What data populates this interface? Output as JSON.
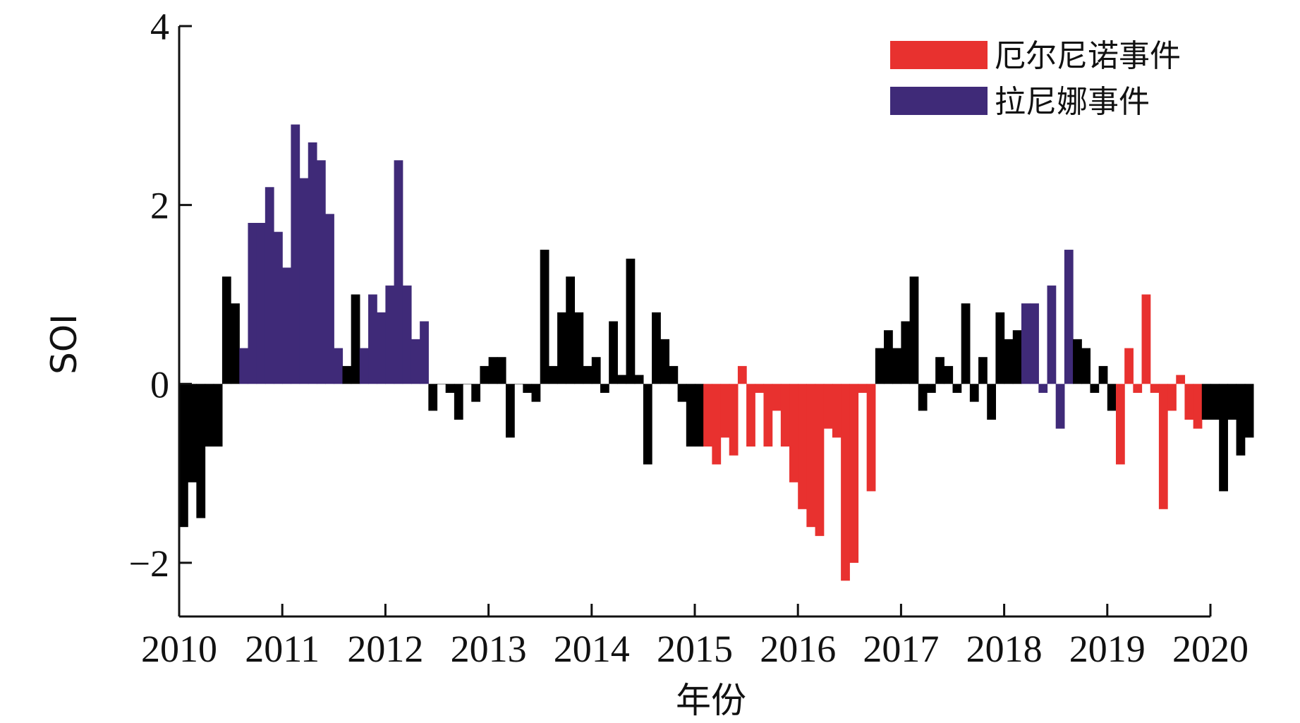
{
  "chart_data": {
    "type": "bar",
    "title": "",
    "xlabel": "年份",
    "ylabel": "SOI",
    "xlim": [
      2010,
      2020
    ],
    "ylim": [
      -2.6,
      4
    ],
    "xticks": [
      "2010",
      "2011",
      "2012",
      "2013",
      "2014",
      "2015",
      "2016",
      "2017",
      "2018",
      "2019",
      "2020"
    ],
    "yticks": [
      {
        "value": 4,
        "label": "4"
      },
      {
        "value": 2,
        "label": "2"
      },
      {
        "value": 0,
        "label": "0"
      },
      {
        "value": -2,
        "label": "−2"
      }
    ],
    "months_start": "2010-01",
    "series": [
      {
        "name": "厄尔尼诺事件",
        "color": "#e8312f"
      },
      {
        "name": "拉尼娜事件",
        "color": "#3f2a78"
      },
      {
        "color": "#000000"
      }
    ],
    "legend": {
      "position": "top-right",
      "items": [
        {
          "label": "厄尔尼诺事件",
          "color": "#e8312f"
        },
        {
          "label": "拉尼娜事件",
          "color": "#3f2a78"
        }
      ]
    },
    "values": [
      -1.6,
      -1.1,
      -1.5,
      -0.7,
      -0.7,
      1.2,
      0.9,
      0.4,
      1.8,
      1.8,
      2.2,
      1.7,
      1.3,
      2.9,
      2.3,
      2.7,
      2.5,
      1.9,
      0.4,
      0.2,
      1.0,
      0.4,
      1.0,
      0.8,
      1.1,
      2.5,
      1.1,
      0.5,
      0.7,
      -0.3,
      0.0,
      -0.1,
      -0.4,
      0.0,
      -0.2,
      0.2,
      0.3,
      0.3,
      -0.6,
      0.0,
      -0.1,
      -0.2,
      1.5,
      0.2,
      0.8,
      1.2,
      0.8,
      0.2,
      0.3,
      -0.1,
      0.7,
      0.1,
      1.4,
      0.1,
      -0.9,
      0.8,
      0.5,
      0.2,
      -0.2,
      -0.7,
      -0.7,
      -0.7,
      -0.9,
      -0.6,
      -0.8,
      0.2,
      -0.7,
      -0.1,
      -0.7,
      -0.3,
      -0.7,
      -1.1,
      -1.4,
      -1.6,
      -1.7,
      -0.5,
      -0.6,
      -2.2,
      -2.0,
      -0.1,
      -1.2,
      0.4,
      0.6,
      0.4,
      0.7,
      1.2,
      -0.3,
      -0.1,
      0.3,
      0.2,
      -0.1,
      0.9,
      -0.2,
      0.3,
      -0.4,
      0.8,
      0.5,
      0.6,
      0.9,
      0.9,
      -0.1,
      1.1,
      -0.5,
      1.5,
      0.5,
      0.4,
      -0.1,
      0.2,
      -0.3,
      -0.9,
      0.4,
      -0.1,
      1.0,
      -0.1,
      -1.4,
      -0.3,
      0.1,
      -0.4,
      -0.5,
      -0.4,
      -0.4,
      -1.2,
      -0.4,
      -0.8,
      -0.6
    ],
    "event_colors": [
      "k",
      "k",
      "k",
      "k",
      "k",
      "k",
      "k",
      "l",
      "l",
      "l",
      "l",
      "l",
      "l",
      "l",
      "l",
      "l",
      "l",
      "l",
      "l",
      "k",
      "k",
      "l",
      "l",
      "l",
      "l",
      "l",
      "l",
      "l",
      "l",
      "k",
      "k",
      "k",
      "k",
      "k",
      "k",
      "k",
      "k",
      "k",
      "k",
      "k",
      "k",
      "k",
      "k",
      "k",
      "k",
      "k",
      "k",
      "k",
      "k",
      "k",
      "k",
      "k",
      "k",
      "k",
      "k",
      "k",
      "k",
      "k",
      "k",
      "k",
      "k",
      "e",
      "e",
      "e",
      "e",
      "e",
      "e",
      "e",
      "e",
      "e",
      "e",
      "e",
      "e",
      "e",
      "e",
      "e",
      "e",
      "e",
      "e",
      "e",
      "e",
      "k",
      "k",
      "k",
      "k",
      "k",
      "k",
      "k",
      "k",
      "k",
      "k",
      "k",
      "k",
      "k",
      "k",
      "k",
      "k",
      "k",
      "l",
      "l",
      "l",
      "l",
      "l",
      "l",
      "k",
      "k",
      "k",
      "k",
      "k",
      "e",
      "e",
      "e",
      "e",
      "e",
      "e",
      "e",
      "e",
      "e",
      "e",
      "k",
      "k",
      "k",
      "k",
      "k",
      "k"
    ]
  }
}
